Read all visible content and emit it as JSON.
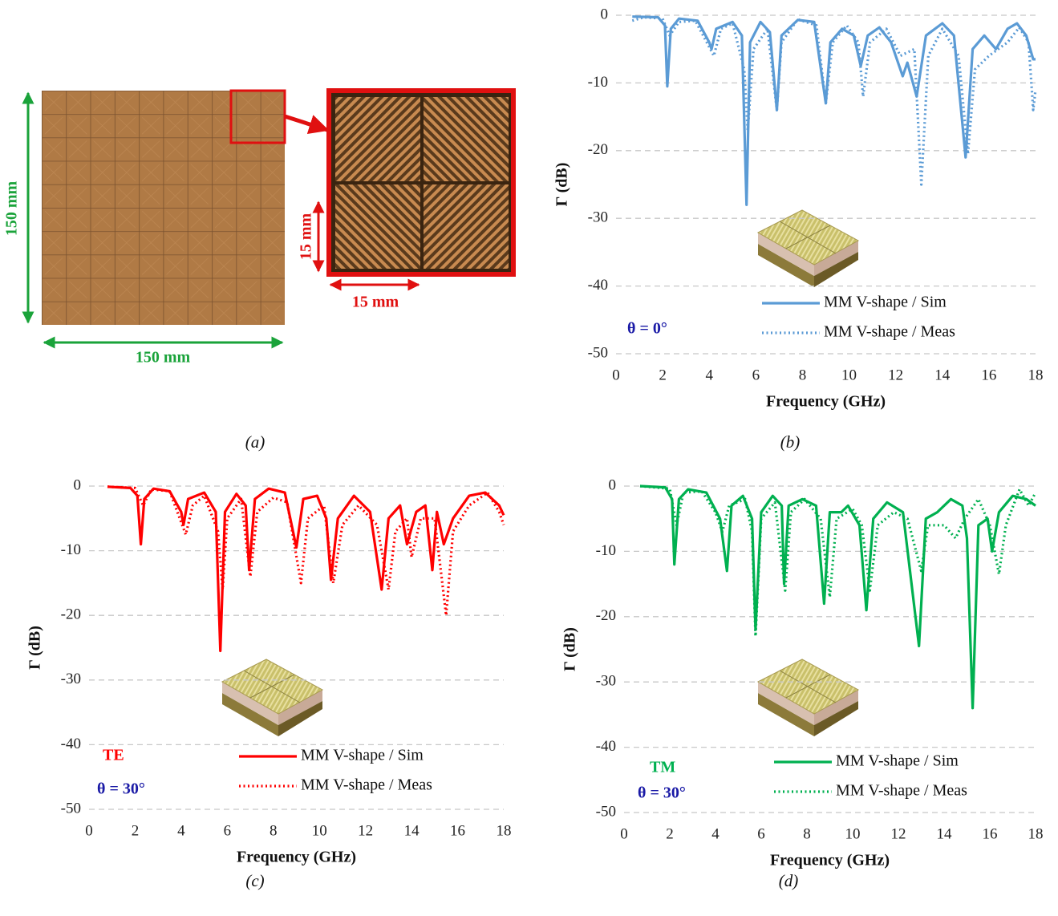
{
  "panel_a": {
    "width_label": "150 mm",
    "height_label": "150 mm",
    "cell_width_label": "15 mm",
    "cell_height_label": "15 mm"
  },
  "captions": [
    "(a)",
    "(b)",
    "(c)",
    "(d)"
  ],
  "chart_data": [
    {
      "type": "line",
      "x_label": "Frequency (GHz)",
      "y_label": "Γ (dB)",
      "xlim": [
        0,
        18
      ],
      "xticks": [
        0,
        2,
        4,
        6,
        8,
        10,
        12,
        14,
        16,
        18
      ],
      "ylim": [
        -50,
        0
      ],
      "yticks": [
        0,
        -10,
        -20,
        -30,
        -40,
        -50
      ],
      "grid": true,
      "annotations": [
        {
          "text": "θ = 0°",
          "color": "#1a1aa6"
        }
      ],
      "series": [
        {
          "name": "MM V-shape / Sim",
          "color": "#5b9bd5",
          "line_style": "solid",
          "x": [
            0.7,
            1.8,
            2.1,
            2.2,
            2.35,
            2.7,
            3.5,
            4.0,
            4.1,
            4.3,
            5,
            5.4,
            5.6,
            5.75,
            6.2,
            6.6,
            6.9,
            7.1,
            7.8,
            8.5,
            9.0,
            9.2,
            9.7,
            10.2,
            10.5,
            10.8,
            11.3,
            11.8,
            12.3,
            12.5,
            12.9,
            13.3,
            14,
            14.5,
            15.0,
            15.3,
            15.8,
            16.3,
            16.8,
            17.2,
            17.6,
            17.9,
            18
          ],
          "values": [
            -0.2,
            -0.3,
            -1.5,
            -10.5,
            -2,
            -0.5,
            -0.8,
            -4,
            -5,
            -2,
            -1,
            -3,
            -28,
            -4,
            -1,
            -2.5,
            -14,
            -3,
            -0.7,
            -1,
            -13,
            -4,
            -2,
            -3,
            -7.5,
            -3,
            -1.8,
            -4,
            -9,
            -7,
            -12,
            -3,
            -1.2,
            -3,
            -21,
            -5,
            -3,
            -5,
            -2,
            -1.2,
            -3,
            -6.5,
            -6.5
          ]
        },
        {
          "name": "MM V-shape / Meas",
          "color": "#5b9bd5",
          "line_style": "dotted",
          "x": [
            0.7,
            1.2,
            2.0,
            2.3,
            2.7,
            3.4,
            4.2,
            4.5,
            5,
            5.5,
            5.65,
            5.9,
            6.5,
            6.9,
            7.1,
            7.8,
            8.6,
            9.0,
            9.3,
            9.9,
            10.4,
            10.6,
            10.9,
            11.6,
            12.2,
            12.8,
            13.1,
            13.4,
            14,
            14.7,
            15.1,
            15.4,
            16,
            16.8,
            17.3,
            17.7,
            17.9,
            18
          ],
          "values": [
            -0.8,
            -0.3,
            -0.5,
            -3,
            -1,
            -0.8,
            -6,
            -2,
            -1.2,
            -8,
            -17,
            -5,
            -2,
            -14,
            -4,
            -0.6,
            -1.5,
            -13,
            -4,
            -1.5,
            -4,
            -12,
            -4,
            -2,
            -6,
            -5,
            -25,
            -6,
            -2,
            -6,
            -20.5,
            -8,
            -6,
            -4,
            -1.8,
            -4,
            -14,
            -11
          ]
        }
      ]
    },
    {
      "type": "line",
      "x_label": "Frequency (GHz)",
      "y_label": "Γ (dB)",
      "xlim": [
        0,
        18
      ],
      "xticks": [
        0,
        2,
        4,
        6,
        8,
        10,
        12,
        14,
        16,
        18
      ],
      "ylim": [
        -50,
        0
      ],
      "yticks": [
        0,
        -10,
        -20,
        -30,
        -40,
        -50
      ],
      "grid": true,
      "annotations": [
        {
          "text": "TE",
          "color": "#ff0000"
        },
        {
          "text": "θ = 30°",
          "color": "#1a1aa6"
        }
      ],
      "series": [
        {
          "name": "MM V-shape / Sim",
          "color": "#ff0000",
          "line_style": "solid",
          "x": [
            0.8,
            1.8,
            2.1,
            2.25,
            2.4,
            2.8,
            3.5,
            4.0,
            4.1,
            4.3,
            5,
            5.5,
            5.7,
            5.9,
            6.4,
            6.8,
            6.95,
            7.2,
            7.8,
            8.5,
            9.0,
            9.3,
            9.9,
            10.3,
            10.5,
            10.8,
            11.5,
            12.2,
            12.7,
            13.0,
            13.5,
            13.8,
            14.2,
            14.6,
            14.9,
            15.1,
            15.4,
            15.8,
            16.5,
            17.2,
            17.8,
            18
          ],
          "values": [
            -0.1,
            -0.3,
            -1.5,
            -9,
            -2,
            -0.4,
            -0.8,
            -4,
            -6,
            -2,
            -1,
            -4,
            -25.5,
            -4,
            -1.2,
            -3,
            -13,
            -2,
            -0.4,
            -1,
            -9.5,
            -2,
            -1.5,
            -5,
            -14.5,
            -5,
            -1.5,
            -4,
            -16,
            -5,
            -3,
            -9,
            -4,
            -3,
            -13,
            -4,
            -9,
            -5,
            -1.5,
            -1,
            -3,
            -4.5
          ]
        },
        {
          "name": "MM V-shape / Meas",
          "color": "#ff0000",
          "line_style": "dotted",
          "x": [
            0.8,
            2.0,
            2.35,
            2.7,
            3.5,
            4.2,
            4.5,
            5,
            5.6,
            5.8,
            6.0,
            6.6,
            7.0,
            7.3,
            8,
            8.6,
            9.2,
            9.5,
            10.2,
            10.6,
            11,
            11.7,
            12.5,
            13.0,
            13.3,
            13.8,
            14.0,
            14.4,
            15,
            15.5,
            15.8,
            16.5,
            17.3,
            17.8,
            18
          ],
          "values": [
            -0.1,
            -0.3,
            -3,
            -0.5,
            -0.8,
            -7.5,
            -3,
            -1.5,
            -7,
            -16,
            -5,
            -2,
            -14,
            -4,
            -1.8,
            -2.5,
            -15,
            -5,
            -3,
            -15,
            -6,
            -3,
            -6,
            -16,
            -7,
            -5,
            -11,
            -5,
            -5,
            -20,
            -7,
            -3,
            -1,
            -4,
            -6
          ]
        }
      ]
    },
    {
      "type": "line",
      "x_label": "Frequency (GHz)",
      "y_label": "Γ (dB)",
      "xlim": [
        0,
        18
      ],
      "xticks": [
        0,
        2,
        4,
        6,
        8,
        10,
        12,
        14,
        16,
        18
      ],
      "ylim": [
        -50,
        0
      ],
      "yticks": [
        0,
        -10,
        -20,
        -30,
        -40,
        -50
      ],
      "grid": true,
      "annotations": [
        {
          "text": "TM",
          "color": "#00b050"
        },
        {
          "text": "θ = 30°",
          "color": "#1a1aa6"
        }
      ],
      "series": [
        {
          "name": "MM V-shape / Sim",
          "color": "#00b050",
          "line_style": "solid",
          "x": [
            0.7,
            1.8,
            2.1,
            2.2,
            2.4,
            2.8,
            3.6,
            4.2,
            4.5,
            4.7,
            5.2,
            5.6,
            5.75,
            6.0,
            6.5,
            6.9,
            7.0,
            7.2,
            7.8,
            8.4,
            8.75,
            9.0,
            9.5,
            9.8,
            10.3,
            10.6,
            10.9,
            11.5,
            12.2,
            12.9,
            13.2,
            13.7,
            14.3,
            14.8,
            15.0,
            15.25,
            15.5,
            15.9,
            16.1,
            16.4,
            17,
            17.6,
            18
          ],
          "values": [
            0,
            -0.2,
            -2,
            -12,
            -2,
            -0.5,
            -1,
            -5,
            -13,
            -3,
            -1.5,
            -5,
            -22,
            -4,
            -1.5,
            -3,
            -15,
            -3,
            -2,
            -3,
            -18,
            -4,
            -4,
            -3,
            -6,
            -19,
            -5,
            -2.5,
            -4,
            -24.5,
            -5,
            -4,
            -2,
            -3,
            -8,
            -34,
            -6,
            -5,
            -10,
            -4,
            -1.5,
            -2,
            -3
          ]
        },
        {
          "name": "MM V-shape / Meas",
          "color": "#00b050",
          "line_style": "dotted",
          "x": [
            0.7,
            2.0,
            2.3,
            2.6,
            3.4,
            4.0,
            4.3,
            4.6,
            5.3,
            5.6,
            5.75,
            6.0,
            6.6,
            7.05,
            7.3,
            7.9,
            8.6,
            9.0,
            9.3,
            10,
            10.4,
            10.75,
            11.1,
            11.8,
            12.4,
            13.0,
            13.3,
            14,
            14.5,
            14.9,
            15.5,
            16.0,
            16.4,
            16.7,
            17.3,
            17.7,
            18
          ],
          "values": [
            0,
            -0.4,
            -6,
            -1,
            -0.8,
            -4,
            -7,
            -3,
            -2,
            -7,
            -23,
            -5,
            -2.5,
            -16,
            -4,
            -2,
            -5,
            -17,
            -5,
            -3.5,
            -6,
            -16,
            -6,
            -4,
            -5,
            -13,
            -6,
            -6,
            -8,
            -5,
            -2,
            -6,
            -13.5,
            -6,
            -0.5,
            -3,
            -1
          ]
        }
      ]
    }
  ]
}
